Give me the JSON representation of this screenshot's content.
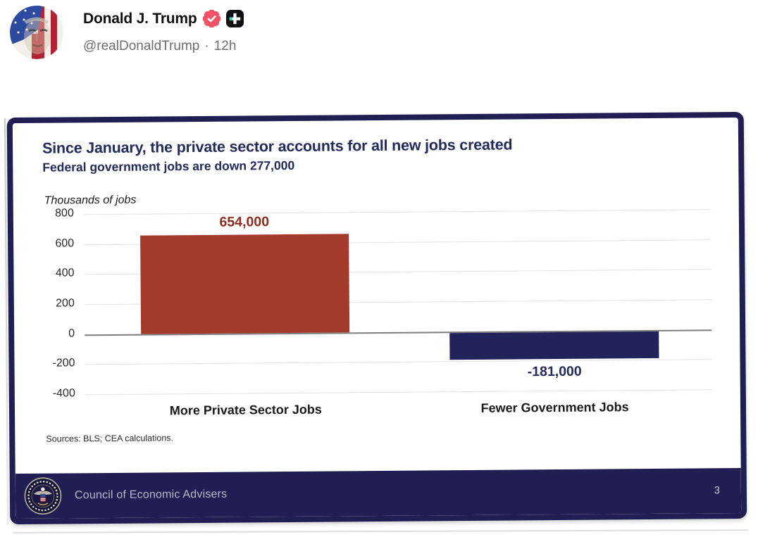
{
  "post": {
    "author_name": "Donald J. Trump",
    "handle": "@realDonaldTrump",
    "separator": "·",
    "timestamp": "12h"
  },
  "badges": {
    "verified": "verified-check",
    "plus": "+"
  },
  "slide": {
    "title": "Since January, the private sector accounts for all new jobs created",
    "subtitle": "Federal government jobs are down 277,000",
    "axis_title": "Thousands of jobs",
    "sources": "Sources: BLS; CEA calculations.",
    "footer_org": "Council of Economic Advisers",
    "page_number": "3"
  },
  "chart_data": {
    "type": "bar",
    "title": "Since January, the private sector accounts for all new jobs created",
    "subtitle": "Federal government jobs are down 277,000",
    "ylabel": "Thousands of jobs",
    "categories": [
      "More Private Sector Jobs",
      "Fewer Government Jobs"
    ],
    "values": [
      654,
      -181
    ],
    "value_labels": [
      "654,000",
      "-181,000"
    ],
    "unit": "thousands of jobs",
    "yticks": [
      800,
      600,
      400,
      200,
      0,
      -200,
      -400
    ],
    "ylim": [
      -400,
      800
    ],
    "grid": true,
    "legend": false,
    "bar_colors": [
      "#a43a2a",
      "#22235a"
    ],
    "value_label_colors": [
      "#8e2a22",
      "#232a5c"
    ],
    "sources": "Sources: BLS; CEA calculations."
  },
  "colors": {
    "navy": "#201e52",
    "brick_red": "#a43a2a",
    "title_navy": "#232a5c",
    "handle_gray": "#6e6e73",
    "verified_pink": "#f25168",
    "badge_black": "#101014",
    "badge_teal": "#35d0ba",
    "footer_text": "#b8b7c6",
    "gridline": "#e3e3e3",
    "zero_line": "#7d7d7d"
  }
}
